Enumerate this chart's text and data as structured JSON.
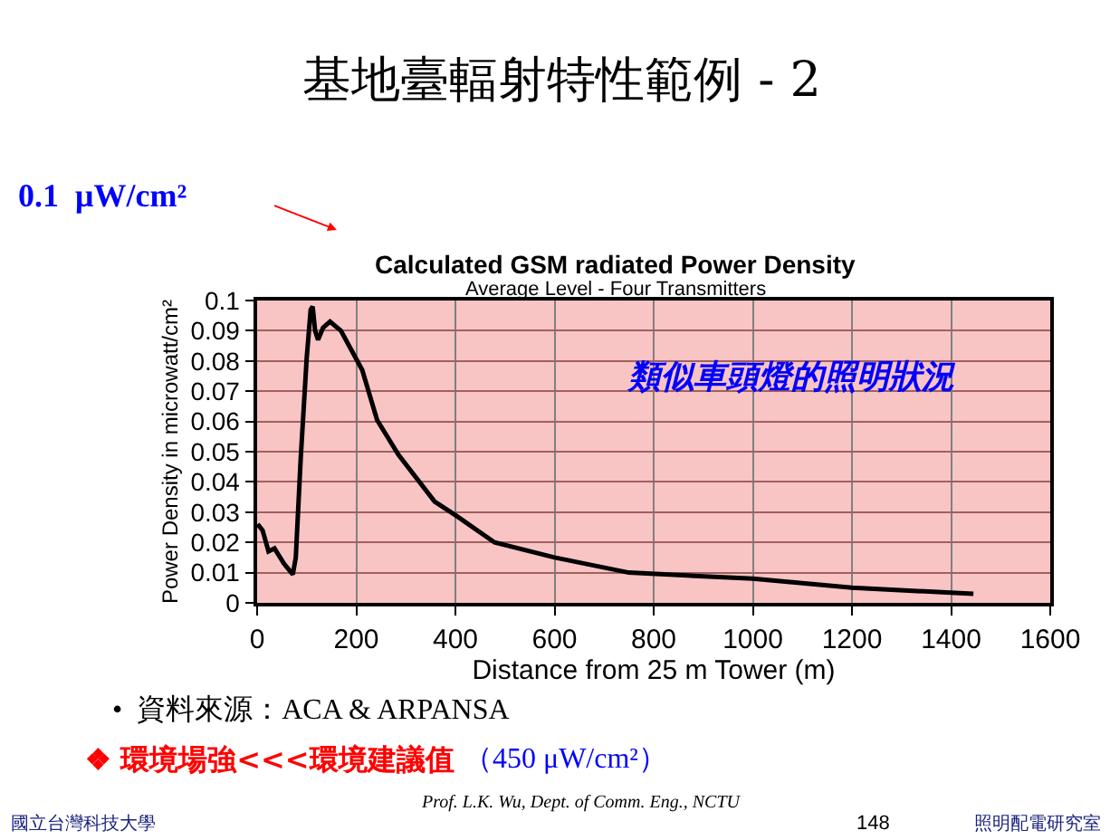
{
  "chart_data": {
    "type": "line",
    "title": "Calculated GSM radiated Power Density",
    "subtitle": "Average Level - Four Transmitters",
    "xlabel": "Distance from 25 m Tower (m)",
    "ylabel": "Power Density in microwatt/cm²",
    "x": [
      1,
      11,
      23,
      35,
      54,
      72,
      78,
      88,
      100,
      108,
      112,
      117,
      123,
      133,
      147,
      169,
      212,
      242,
      285,
      358,
      400,
      479,
      600,
      750,
      1000,
      1200,
      1445
    ],
    "series": [
      {
        "color": "#000000",
        "values": [
          0.026,
          0.024,
          0.017,
          0.018,
          0.013,
          0.0094,
          0.015,
          0.048,
          0.081,
          0.097,
          0.098,
          0.09,
          0.087,
          0.091,
          0.093,
          0.09,
          0.077,
          0.0605,
          0.049,
          0.0335,
          0.029,
          0.02,
          0.015,
          0.01,
          0.008,
          0.005,
          0.003
        ]
      }
    ],
    "xlim": [
      0,
      1600
    ],
    "xticks": [
      0,
      200,
      400,
      600,
      800,
      1000,
      1200,
      1400,
      1600
    ],
    "ylim": [
      0,
      0.1
    ],
    "yticks": [
      0,
      0.01,
      0.02,
      0.03,
      0.04,
      0.05,
      0.06,
      0.07,
      0.08,
      0.09,
      0.1
    ],
    "grid": true,
    "marker": "none",
    "line_style": "solid",
    "annotations": [
      "基地臺輻射特性範例 - 2",
      "0.1  μW/cm²",
      "類似車頭燈的照明狀況",
      "•  資料來源：ACA & ARPANSA",
      "❖ 環境場強<<<環境建議值",
      "（450 μW/cm²）",
      "Prof. L.K. Wu, Dept. of Comm. Eng., NCTU",
      "國立台灣科技大學",
      "148",
      "照明配電研究室"
    ]
  }
}
